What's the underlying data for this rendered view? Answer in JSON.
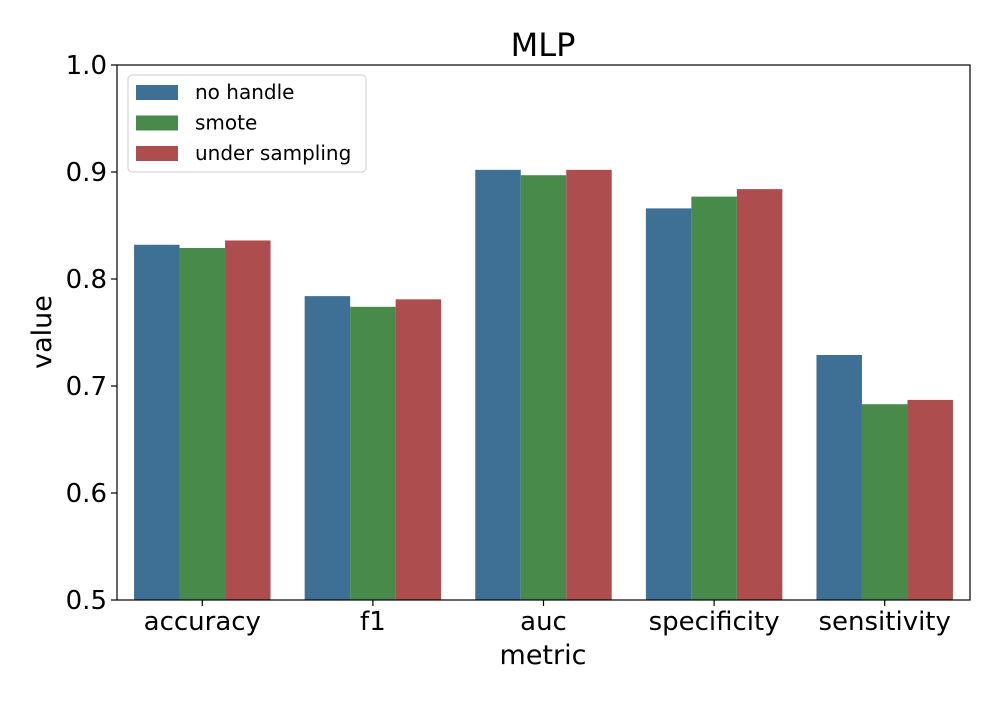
{
  "chart_data": {
    "type": "bar",
    "title": "MLP",
    "xlabel": "metric",
    "ylabel": "value",
    "ylim": [
      0.5,
      1.0
    ],
    "yticks": [
      "0.5",
      "0.6",
      "0.7",
      "0.8",
      "0.9",
      "1.0"
    ],
    "categories": [
      "accuracy",
      "f1",
      "auc",
      "specificity",
      "sensitivity"
    ],
    "series": [
      {
        "name": "no handle",
        "color": "#3e7096",
        "values": [
          0.832,
          0.784,
          0.902,
          0.866,
          0.729
        ]
      },
      {
        "name": "smote",
        "color": "#478a49",
        "values": [
          0.829,
          0.774,
          0.897,
          0.877,
          0.683
        ]
      },
      {
        "name": "under sampling",
        "color": "#ae4d4d",
        "values": [
          0.836,
          0.781,
          0.902,
          0.884,
          0.687
        ]
      }
    ],
    "grid": false,
    "legend": {
      "placement": "top-left"
    }
  }
}
